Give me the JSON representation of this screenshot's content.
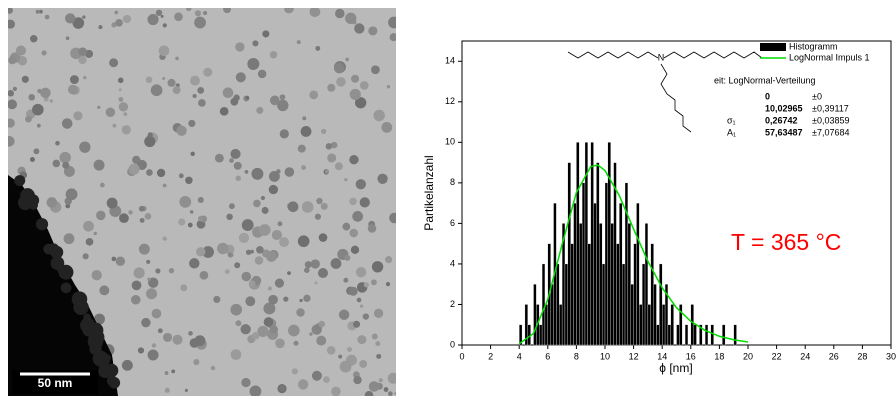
{
  "image": {
    "scale_bar_label": "50 nm"
  },
  "chart_data": {
    "type": "histogram",
    "xlabel": "ϕ [nm]",
    "ylabel": "Partikelanzahl",
    "xlim": [
      0,
      30
    ],
    "xticks": [
      0,
      2,
      4,
      6,
      8,
      10,
      12,
      14,
      16,
      18,
      20,
      22,
      24,
      26,
      28,
      30
    ],
    "ylim": [
      0,
      15
    ],
    "yticks": [
      0,
      2,
      4,
      6,
      8,
      10,
      12,
      14
    ],
    "molecule_label": "N",
    "annotation": "T = 365 °C",
    "fit": {
      "title": "eit: LogNormal-Verteilung",
      "rows": [
        {
          "value": "0",
          "error": "±0"
        },
        {
          "value": "10,02965",
          "error": "±0,39117"
        },
        {
          "name": "σ₁",
          "value": "0,26742",
          "error": "±0,03859"
        },
        {
          "name": "A₁",
          "value": "57,63487",
          "error": "±7,07684"
        }
      ]
    },
    "series": [
      {
        "name": "Histogramm",
        "color": "#000000",
        "bins": [
          4,
          4.2,
          4.4,
          4.6,
          4.8,
          5,
          5.2,
          5.4,
          5.6,
          5.8,
          6,
          6.2,
          6.4,
          6.6,
          6.8,
          7,
          7.2,
          7.4,
          7.6,
          7.8,
          8,
          8.2,
          8.4,
          8.6,
          8.8,
          9,
          9.2,
          9.4,
          9.6,
          9.8,
          10,
          10.2,
          10.4,
          10.6,
          10.8,
          11,
          11.2,
          11.4,
          11.6,
          11.8,
          12,
          12.2,
          12.4,
          12.6,
          12.8,
          13,
          13.2,
          13.4,
          13.6,
          13.8,
          14,
          14.2,
          14.4,
          14.6,
          14.8,
          15,
          15.2,
          15.4,
          15.6,
          15.8,
          16,
          16.2,
          16.4,
          16.6,
          16.8,
          17,
          17.2,
          17.4,
          17.6,
          17.8,
          18,
          18.2,
          18.4,
          18.6,
          18.8,
          19,
          19.2
        ],
        "values": [
          1,
          0,
          2,
          1,
          0,
          3,
          2,
          1,
          4,
          2,
          5,
          3,
          7,
          4,
          2,
          6,
          4,
          9,
          5,
          7,
          10,
          6,
          8,
          10,
          5,
          10,
          7,
          9,
          6,
          4,
          8,
          10,
          6,
          9,
          5,
          7,
          4,
          8,
          6,
          3,
          5,
          7,
          2,
          4,
          6,
          2,
          5,
          3,
          1,
          4,
          2,
          3,
          1,
          2,
          0,
          1,
          2,
          0,
          1,
          0,
          2,
          1,
          0,
          1,
          0,
          1,
          0,
          1,
          0,
          0,
          0,
          1,
          0,
          0,
          0,
          1
        ]
      },
      {
        "name": "LogNormal Impuls 1",
        "color": "#00dd00",
        "x": [
          4,
          5,
          6,
          7,
          8,
          9,
          9.5,
          10,
          11,
          12,
          13,
          14,
          15,
          16,
          17,
          18,
          19,
          20
        ],
        "values": [
          0.06,
          0.57,
          2.25,
          4.96,
          7.52,
          8.8,
          8.88,
          8.61,
          7.37,
          5.72,
          4.13,
          2.82,
          1.84,
          1.17,
          0.72,
          0.43,
          0.26,
          0.15
        ]
      }
    ]
  }
}
